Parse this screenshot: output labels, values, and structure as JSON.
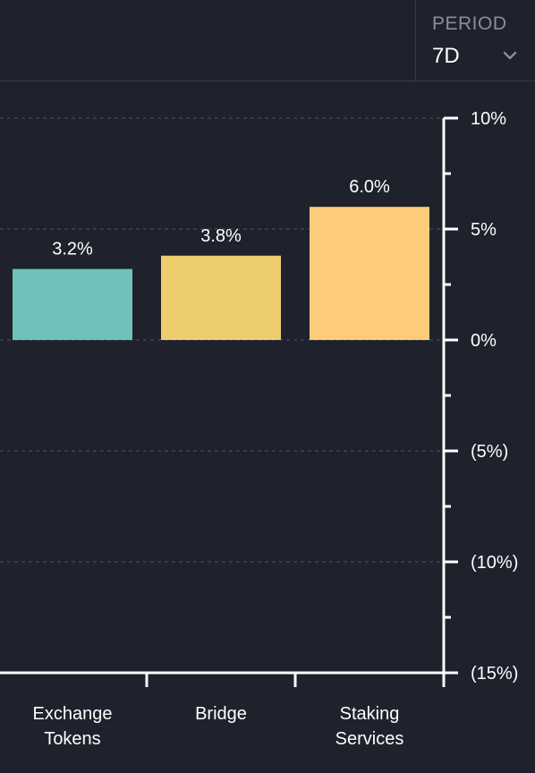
{
  "period": {
    "label": "PERIOD",
    "value": "7D",
    "chevron_icon": "chevron-down-icon"
  },
  "chart_data": {
    "type": "bar",
    "categories": [
      [
        "Exchange",
        "Tokens"
      ],
      [
        "Bridge"
      ],
      [
        "Staking",
        "Services"
      ]
    ],
    "values": [
      3.2,
      3.8,
      6.0
    ],
    "value_labels": [
      "3.2%",
      "3.8%",
      "6.0%"
    ],
    "colors": [
      "#6fc2b9",
      "#edcd6d",
      "#fdcc7a"
    ],
    "ylim": [
      -15,
      10
    ],
    "y_ticks": [
      10,
      5,
      0,
      -5,
      -10,
      -15
    ],
    "y_tick_labels": [
      "10%",
      "5%",
      "0%",
      "(5%)",
      "(10%)",
      "(15%)"
    ],
    "y_axis_position": "right",
    "grid": true,
    "title": "",
    "xlabel": "",
    "ylabel": ""
  }
}
